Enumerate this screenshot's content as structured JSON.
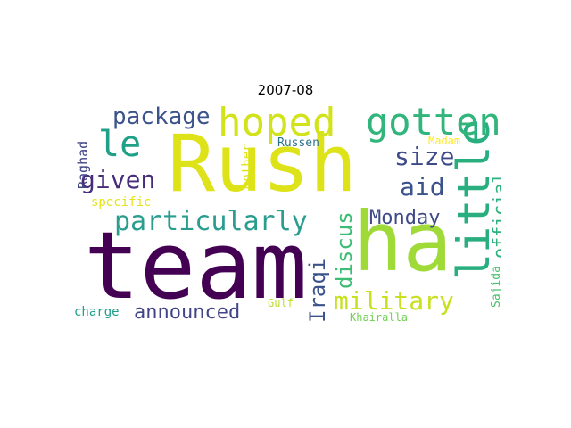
{
  "title": "2007-08",
  "words": [
    {
      "text": "team",
      "color": "#440154"
    },
    {
      "text": "Rush",
      "color": "#dde318"
    },
    {
      "text": "ha",
      "color": "#a0da39"
    },
    {
      "text": "little",
      "color": "#29af7f"
    },
    {
      "text": "hoped",
      "color": "#d2e21b"
    },
    {
      "text": "gotten",
      "color": "#31b57b"
    },
    {
      "text": "particularly",
      "color": "#2a9d8f"
    },
    {
      "text": "package",
      "color": "#3b528b"
    },
    {
      "text": "le",
      "color": "#1fa187"
    },
    {
      "text": "given",
      "color": "#472c7a"
    },
    {
      "text": "size",
      "color": "#3e4a89"
    },
    {
      "text": "aid",
      "color": "#3b528b"
    },
    {
      "text": "official",
      "color": "#2db27d"
    },
    {
      "text": "Monday",
      "color": "#3e4989"
    },
    {
      "text": "military",
      "color": "#c8e020"
    },
    {
      "text": "discus",
      "color": "#3dbc74"
    },
    {
      "text": "Iraqi",
      "color": "#3b528b"
    },
    {
      "text": "announced",
      "color": "#414487"
    },
    {
      "text": "Raghad",
      "color": "#414487"
    },
    {
      "text": "mother",
      "color": "#dde318"
    },
    {
      "text": "Russen",
      "color": "#2c728e"
    },
    {
      "text": "Madam",
      "color": "#fde725"
    },
    {
      "text": "specific",
      "color": "#e5e419"
    },
    {
      "text": "charge",
      "color": "#1f9e89"
    },
    {
      "text": "Gulf",
      "color": "#bddf26"
    },
    {
      "text": "Khairalla",
      "color": "#73d055"
    },
    {
      "text": "Sajida",
      "color": "#4ac16d"
    }
  ]
}
